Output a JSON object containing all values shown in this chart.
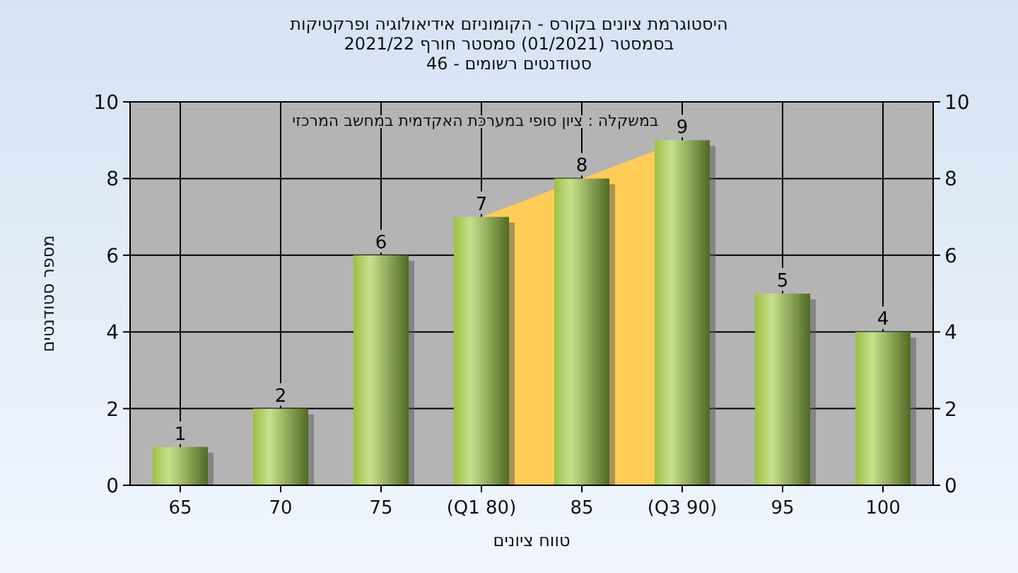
{
  "chart_data": {
    "type": "bar",
    "title": "היסטוגרמת ציונים בקורס - הקומוניזם אידיאולוגיה ופרקטיקות",
    "subtitle": "בסמסטר  (01/2021)  סמסטר חורף 2021/22\nסטודנטים רשומים - 46",
    "xlabel": "טווח ציונים",
    "ylabel": "מספר סטודנטים",
    "annotations": [
      "במשקלה : ציון סופי במערכת האקדמית במחשב המרכזי"
    ],
    "categories": [
      "65",
      "70",
      "75",
      "(Q1 80)",
      "85",
      "(Q3 90)",
      "95",
      "100"
    ],
    "series": [
      {
        "type": "area",
        "color": "#ffcc55",
        "values": [
          null,
          null,
          null,
          7,
          8,
          9,
          null,
          null
        ]
      },
      {
        "color": "#9cc044",
        "values": [
          1,
          2,
          6,
          7,
          8,
          9,
          5,
          4
        ],
        "value_labels": [
          "1",
          "2",
          "6",
          "7",
          "8",
          "9",
          "5",
          "4"
        ]
      }
    ],
    "ylim": [
      0,
      10
    ],
    "yticks": [
      0,
      2,
      4,
      6,
      8,
      10
    ],
    "y2lim": [
      0,
      10
    ],
    "y2ticks": [
      0,
      2,
      4,
      6,
      8,
      10
    ],
    "grid": true
  }
}
